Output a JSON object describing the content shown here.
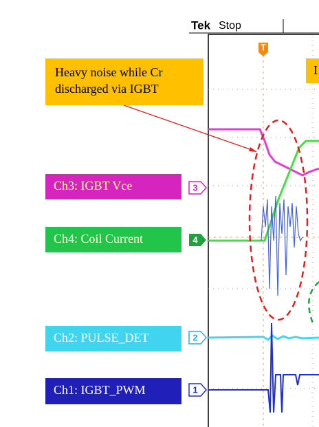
{
  "header": {
    "brand": "Tek",
    "status": "Stop",
    "trigger": "T"
  },
  "annotations": [
    {
      "text_lines": [
        "Heavy noise while Cr",
        "discharged via IGBT"
      ]
    },
    {
      "text_lines": [
        "I"
      ]
    }
  ],
  "channels": [
    {
      "label": "Ch3: IGBT Vce",
      "marker": "3"
    },
    {
      "label": "Ch4: Coil Current",
      "marker": "4"
    },
    {
      "label": "Ch2: PULSE_DET",
      "marker": "2"
    },
    {
      "label": "Ch1: IGBT_PWM",
      "marker": "1"
    }
  ]
}
